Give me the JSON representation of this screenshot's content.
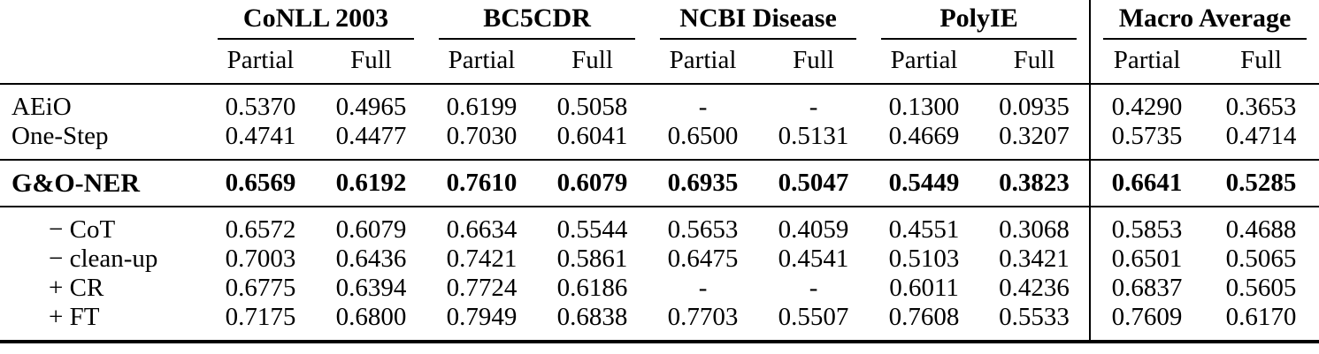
{
  "colors": {
    "background": "#ffffff",
    "text": "#000000",
    "rule": "#000000"
  },
  "table": {
    "corner_label": "",
    "column_groups": [
      {
        "label": "CoNLL 2003",
        "subcolumns": [
          "Partial",
          "Full"
        ],
        "separated": false
      },
      {
        "label": "BC5CDR",
        "subcolumns": [
          "Partial",
          "Full"
        ],
        "separated": false
      },
      {
        "label": "NCBI Disease",
        "subcolumns": [
          "Partial",
          "Full"
        ],
        "separated": false
      },
      {
        "label": "PolyIE",
        "subcolumns": [
          "Partial",
          "Full"
        ],
        "separated": false
      },
      {
        "label": "Macro Average",
        "subcolumns": [
          "Partial",
          "Full"
        ],
        "separated": true
      }
    ],
    "sections": [
      {
        "name": "baselines",
        "rule_after": true,
        "rows": [
          {
            "label": "AEiO",
            "bold": false,
            "indent": false,
            "values": [
              "0.5370",
              "0.4965",
              "0.6199",
              "0.5058",
              "-",
              "-",
              "0.1300",
              "0.0935",
              "0.4290",
              "0.3653"
            ]
          },
          {
            "label": "One-Step",
            "bold": false,
            "indent": false,
            "values": [
              "0.4741",
              "0.4477",
              "0.7030",
              "0.6041",
              "0.6500",
              "0.5131",
              "0.4669",
              "0.3207",
              "0.5735",
              "0.4714"
            ]
          }
        ]
      },
      {
        "name": "main-method",
        "rule_after": true,
        "rows": [
          {
            "label": "G&O-NER",
            "bold": true,
            "indent": false,
            "values": [
              "0.6569",
              "0.6192",
              "0.7610",
              "0.6079",
              "0.6935",
              "0.5047",
              "0.5449",
              "0.3823",
              "0.6641",
              "0.5285"
            ]
          }
        ]
      },
      {
        "name": "ablations",
        "rule_after": false,
        "rows": [
          {
            "label": "− CoT",
            "bold": false,
            "indent": true,
            "values": [
              "0.6572",
              "0.6079",
              "0.6634",
              "0.5544",
              "0.5653",
              "0.4059",
              "0.4551",
              "0.3068",
              "0.5853",
              "0.4688"
            ]
          },
          {
            "label": "− clean-up",
            "bold": false,
            "indent": true,
            "values": [
              "0.7003",
              "0.6436",
              "0.7421",
              "0.5861",
              "0.6475",
              "0.4541",
              "0.5103",
              "0.3421",
              "0.6501",
              "0.5065"
            ]
          },
          {
            "label": "+ CR",
            "bold": false,
            "indent": true,
            "values": [
              "0.6775",
              "0.6394",
              "0.7724",
              "0.6186",
              "-",
              "-",
              "0.6011",
              "0.4236",
              "0.6837",
              "0.5605"
            ]
          },
          {
            "label": "+ FT",
            "bold": false,
            "indent": true,
            "values": [
              "0.7175",
              "0.6800",
              "0.7949",
              "0.6838",
              "0.7703",
              "0.5507",
              "0.7608",
              "0.5533",
              "0.7609",
              "0.6170"
            ]
          }
        ]
      }
    ]
  }
}
